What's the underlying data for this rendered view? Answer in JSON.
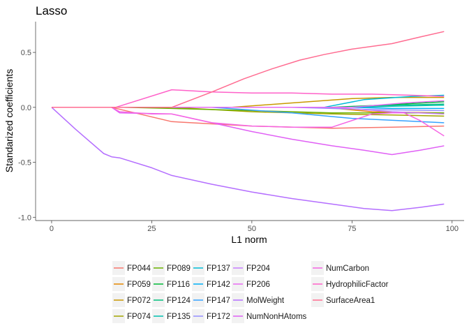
{
  "chart_data": {
    "type": "line",
    "title": "Lasso",
    "xlabel": "L1 norm",
    "ylabel": "Standarized coefficients",
    "xlim": [
      -4,
      103
    ],
    "ylim": [
      -1.03,
      0.78
    ],
    "xticks": [
      0,
      25,
      50,
      75,
      100
    ],
    "yticks": [
      0.5,
      0.0,
      -0.5,
      -1.0
    ],
    "ytick_labels": [
      "0.5",
      "0.0",
      "-0.5",
      "-1.0"
    ],
    "grid": false,
    "legend_position": "bottom",
    "series": [
      {
        "name": "FP044",
        "color": "#F8766D",
        "points": [
          [
            0,
            0
          ],
          [
            15,
            0
          ],
          [
            30,
            -0.13
          ],
          [
            50,
            -0.17
          ],
          [
            70,
            -0.19
          ],
          [
            85,
            -0.18
          ],
          [
            98,
            -0.17
          ]
        ]
      },
      {
        "name": "FP059",
        "color": "#E58700",
        "points": [
          [
            0,
            0
          ],
          [
            68,
            0
          ],
          [
            80,
            -0.04
          ],
          [
            98,
            -0.05
          ]
        ]
      },
      {
        "name": "FP072",
        "color": "#C99800",
        "points": [
          [
            0,
            0
          ],
          [
            45,
            0
          ],
          [
            60,
            0.04
          ],
          [
            75,
            0.08
          ],
          [
            85,
            0.09
          ],
          [
            98,
            0.09
          ]
        ]
      },
      {
        "name": "FP074",
        "color": "#A3A500",
        "points": [
          [
            0,
            0
          ],
          [
            30,
            0
          ],
          [
            50,
            -0.04
          ],
          [
            70,
            -0.06
          ],
          [
            85,
            -0.07
          ],
          [
            98,
            -0.08
          ]
        ]
      },
      {
        "name": "FP089",
        "color": "#6BB100",
        "points": [
          [
            0,
            0
          ],
          [
            18,
            0
          ],
          [
            30,
            -0.01
          ],
          [
            50,
            -0.03
          ],
          [
            70,
            -0.05
          ],
          [
            98,
            -0.05
          ]
        ]
      },
      {
        "name": "FP116",
        "color": "#00BA38",
        "points": [
          [
            0,
            0
          ],
          [
            70,
            0
          ],
          [
            82,
            0.02
          ],
          [
            98,
            0.05
          ]
        ]
      },
      {
        "name": "FP124",
        "color": "#00BF7D",
        "points": [
          [
            0,
            0
          ],
          [
            72,
            0
          ],
          [
            85,
            0.02
          ],
          [
            98,
            0.03
          ]
        ]
      },
      {
        "name": "FP135",
        "color": "#00C0AF",
        "points": [
          [
            0,
            0
          ],
          [
            75,
            0
          ],
          [
            85,
            0.01
          ],
          [
            98,
            0.02
          ]
        ]
      },
      {
        "name": "FP137",
        "color": "#00BCD8",
        "points": [
          [
            0,
            0
          ],
          [
            68,
            0
          ],
          [
            78,
            0.07
          ],
          [
            90,
            0.1
          ],
          [
            98,
            0.11
          ]
        ]
      },
      {
        "name": "FP142",
        "color": "#00B0F6",
        "points": [
          [
            0,
            0
          ],
          [
            75,
            0
          ],
          [
            85,
            -0.01
          ],
          [
            98,
            -0.01
          ]
        ]
      },
      {
        "name": "FP147",
        "color": "#35A2FF",
        "points": [
          [
            0,
            0
          ],
          [
            40,
            0
          ],
          [
            60,
            -0.05
          ],
          [
            75,
            -0.1
          ],
          [
            98,
            -0.14
          ]
        ]
      },
      {
        "name": "FP172",
        "color": "#9590FF",
        "points": [
          [
            0,
            0
          ],
          [
            60,
            0
          ],
          [
            80,
            -0.02
          ],
          [
            98,
            -0.03
          ]
        ]
      },
      {
        "name": "FP204",
        "color": "#C77CFF",
        "points": [
          [
            0,
            0
          ],
          [
            70,
            0
          ],
          [
            85,
            -0.04
          ],
          [
            98,
            -0.06
          ]
        ]
      },
      {
        "name": "FP206",
        "color": "#E76BF3",
        "points": [
          [
            0,
            0
          ],
          [
            75,
            0
          ],
          [
            88,
            0.04
          ],
          [
            98,
            0.06
          ]
        ]
      },
      {
        "name": "MolWeight",
        "color": "#B46EFF",
        "points": [
          [
            0,
            0
          ],
          [
            6,
            -0.2
          ],
          [
            13,
            -0.42
          ],
          [
            15,
            -0.45
          ],
          [
            17,
            -0.46
          ],
          [
            25,
            -0.55
          ],
          [
            30,
            -0.62
          ],
          [
            40,
            -0.7
          ],
          [
            50,
            -0.77
          ],
          [
            60,
            -0.83
          ],
          [
            70,
            -0.88
          ],
          [
            78,
            -0.92
          ],
          [
            85,
            -0.94
          ],
          [
            92,
            -0.91
          ],
          [
            98,
            -0.88
          ]
        ]
      },
      {
        "name": "NumNonHAtoms",
        "color": "#E060F5",
        "points": [
          [
            0,
            0
          ],
          [
            15,
            0
          ],
          [
            17,
            -0.05
          ],
          [
            30,
            -0.06
          ],
          [
            40,
            -0.14
          ],
          [
            50,
            -0.22
          ],
          [
            60,
            -0.29
          ],
          [
            70,
            -0.35
          ],
          [
            78,
            -0.39
          ],
          [
            85,
            -0.43
          ],
          [
            92,
            -0.39
          ],
          [
            98,
            -0.35
          ]
        ]
      },
      {
        "name": "NumCarbon",
        "color": "#F564E3",
        "points": [
          [
            0,
            0
          ],
          [
            15,
            0
          ],
          [
            17,
            -0.04
          ],
          [
            25,
            -0.06
          ],
          [
            30,
            -0.06
          ],
          [
            35,
            -0.1
          ],
          [
            40,
            -0.14
          ],
          [
            50,
            -0.17
          ],
          [
            60,
            -0.18
          ],
          [
            70,
            -0.18
          ],
          [
            80,
            -0.06
          ],
          [
            85,
            -0.05
          ],
          [
            88,
            -0.05
          ],
          [
            92,
            -0.12
          ],
          [
            98,
            -0.26
          ]
        ]
      },
      {
        "name": "HydrophilicFactor",
        "color": "#FF61C9",
        "points": [
          [
            0,
            0
          ],
          [
            16,
            0
          ],
          [
            30,
            0.16
          ],
          [
            40,
            0.14
          ],
          [
            50,
            0.13
          ],
          [
            60,
            0.13
          ],
          [
            70,
            0.12
          ],
          [
            80,
            0.12
          ],
          [
            90,
            0.11
          ],
          [
            98,
            0.1
          ]
        ]
      },
      {
        "name": "SurfaceArea1",
        "color": "#FF6C91",
        "points": [
          [
            0,
            0
          ],
          [
            30,
            0
          ],
          [
            40,
            0.14
          ],
          [
            48,
            0.26
          ],
          [
            55,
            0.35
          ],
          [
            62,
            0.43
          ],
          [
            68,
            0.48
          ],
          [
            75,
            0.53
          ],
          [
            85,
            0.58
          ],
          [
            92,
            0.64
          ],
          [
            98,
            0.69
          ]
        ]
      }
    ]
  }
}
